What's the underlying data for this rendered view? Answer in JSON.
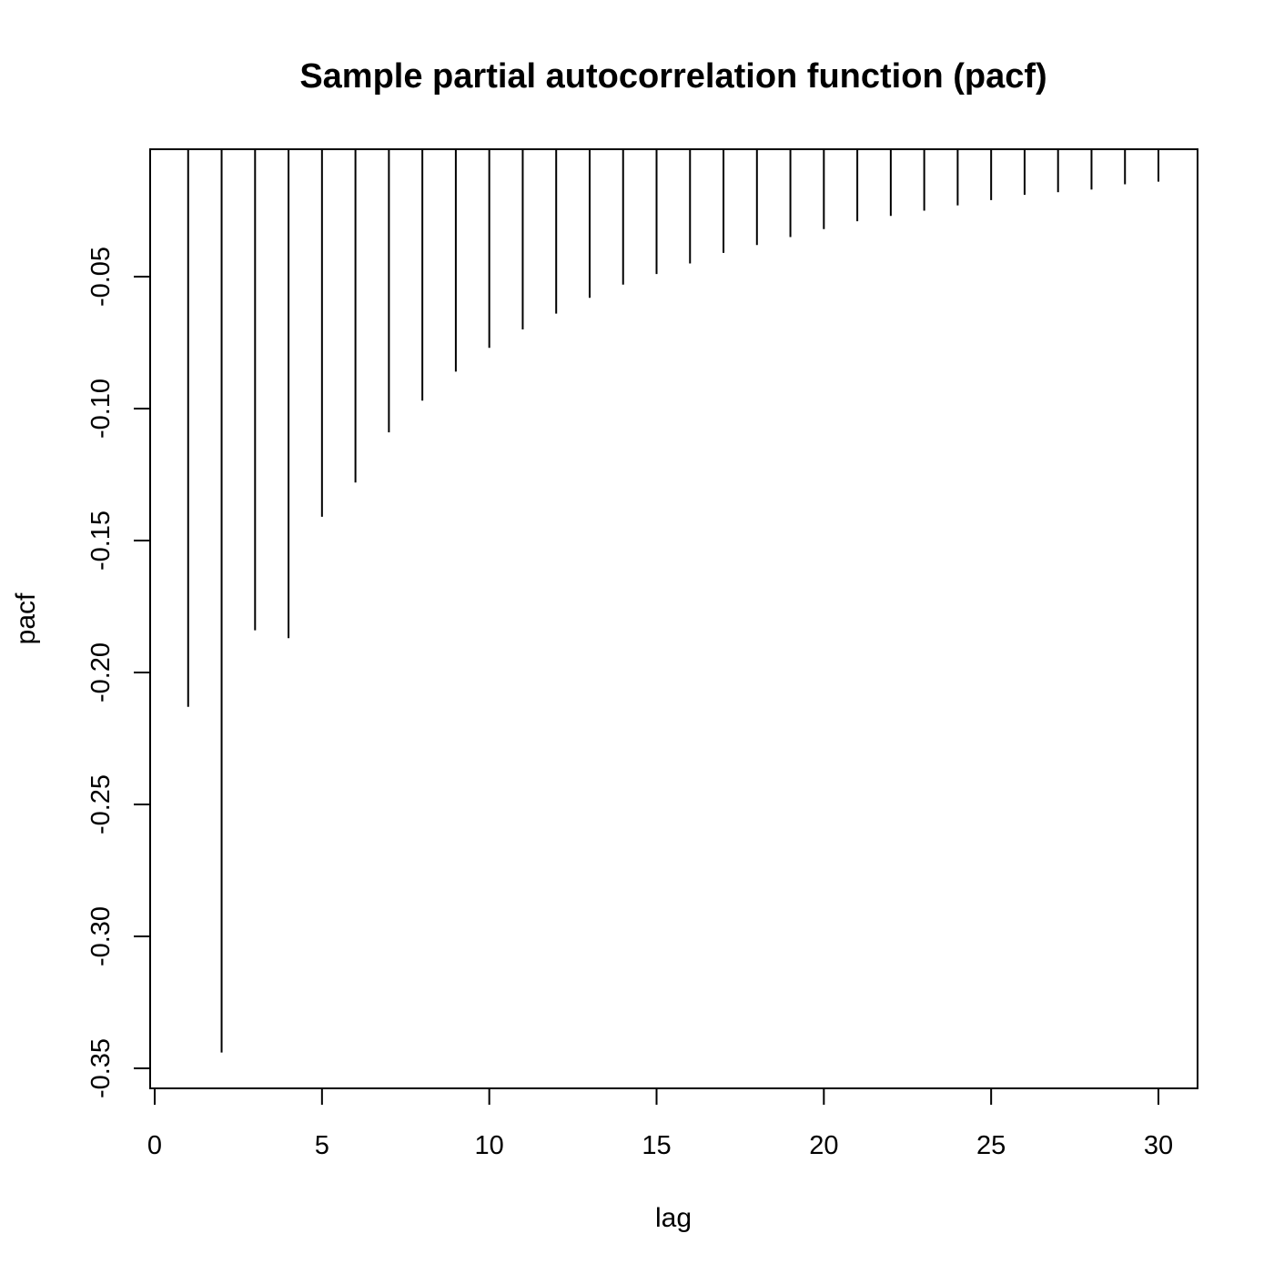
{
  "chart_data": {
    "type": "bar",
    "title": "Sample partial autocorrelation function (pacf)",
    "xlabel": "lag",
    "ylabel": "pacf",
    "xlim": [
      0,
      30
    ],
    "ylim": [
      -0.35,
      0
    ],
    "x_ticks": [
      0,
      5,
      10,
      15,
      20,
      25,
      30
    ],
    "x_tick_labels": [
      "0",
      "5",
      "10",
      "15",
      "20",
      "25",
      "30"
    ],
    "y_ticks": [
      -0.05,
      -0.1,
      -0.15,
      -0.2,
      -0.25,
      -0.3,
      -0.35
    ],
    "y_tick_labels": [
      "-0.05",
      "-0.10",
      "-0.15",
      "-0.20",
      "-0.25",
      "-0.30",
      "-0.35"
    ],
    "grid": false,
    "series": [
      {
        "lags": [
          1,
          2,
          3,
          4,
          5,
          6,
          7,
          8,
          9,
          10,
          11,
          12,
          13,
          14,
          15,
          16,
          17,
          18,
          19,
          20,
          21,
          22,
          23,
          24,
          25,
          26,
          27,
          28,
          29,
          30
        ],
        "values": [
          -0.213,
          -0.344,
          -0.184,
          -0.187,
          -0.141,
          -0.128,
          -0.109,
          -0.097,
          -0.086,
          -0.077,
          -0.07,
          -0.064,
          -0.058,
          -0.053,
          -0.049,
          -0.045,
          -0.041,
          -0.038,
          -0.035,
          -0.032,
          -0.029,
          -0.027,
          -0.025,
          -0.023,
          -0.021,
          -0.019,
          -0.018,
          -0.017,
          -0.015,
          -0.014
        ]
      }
    ]
  }
}
